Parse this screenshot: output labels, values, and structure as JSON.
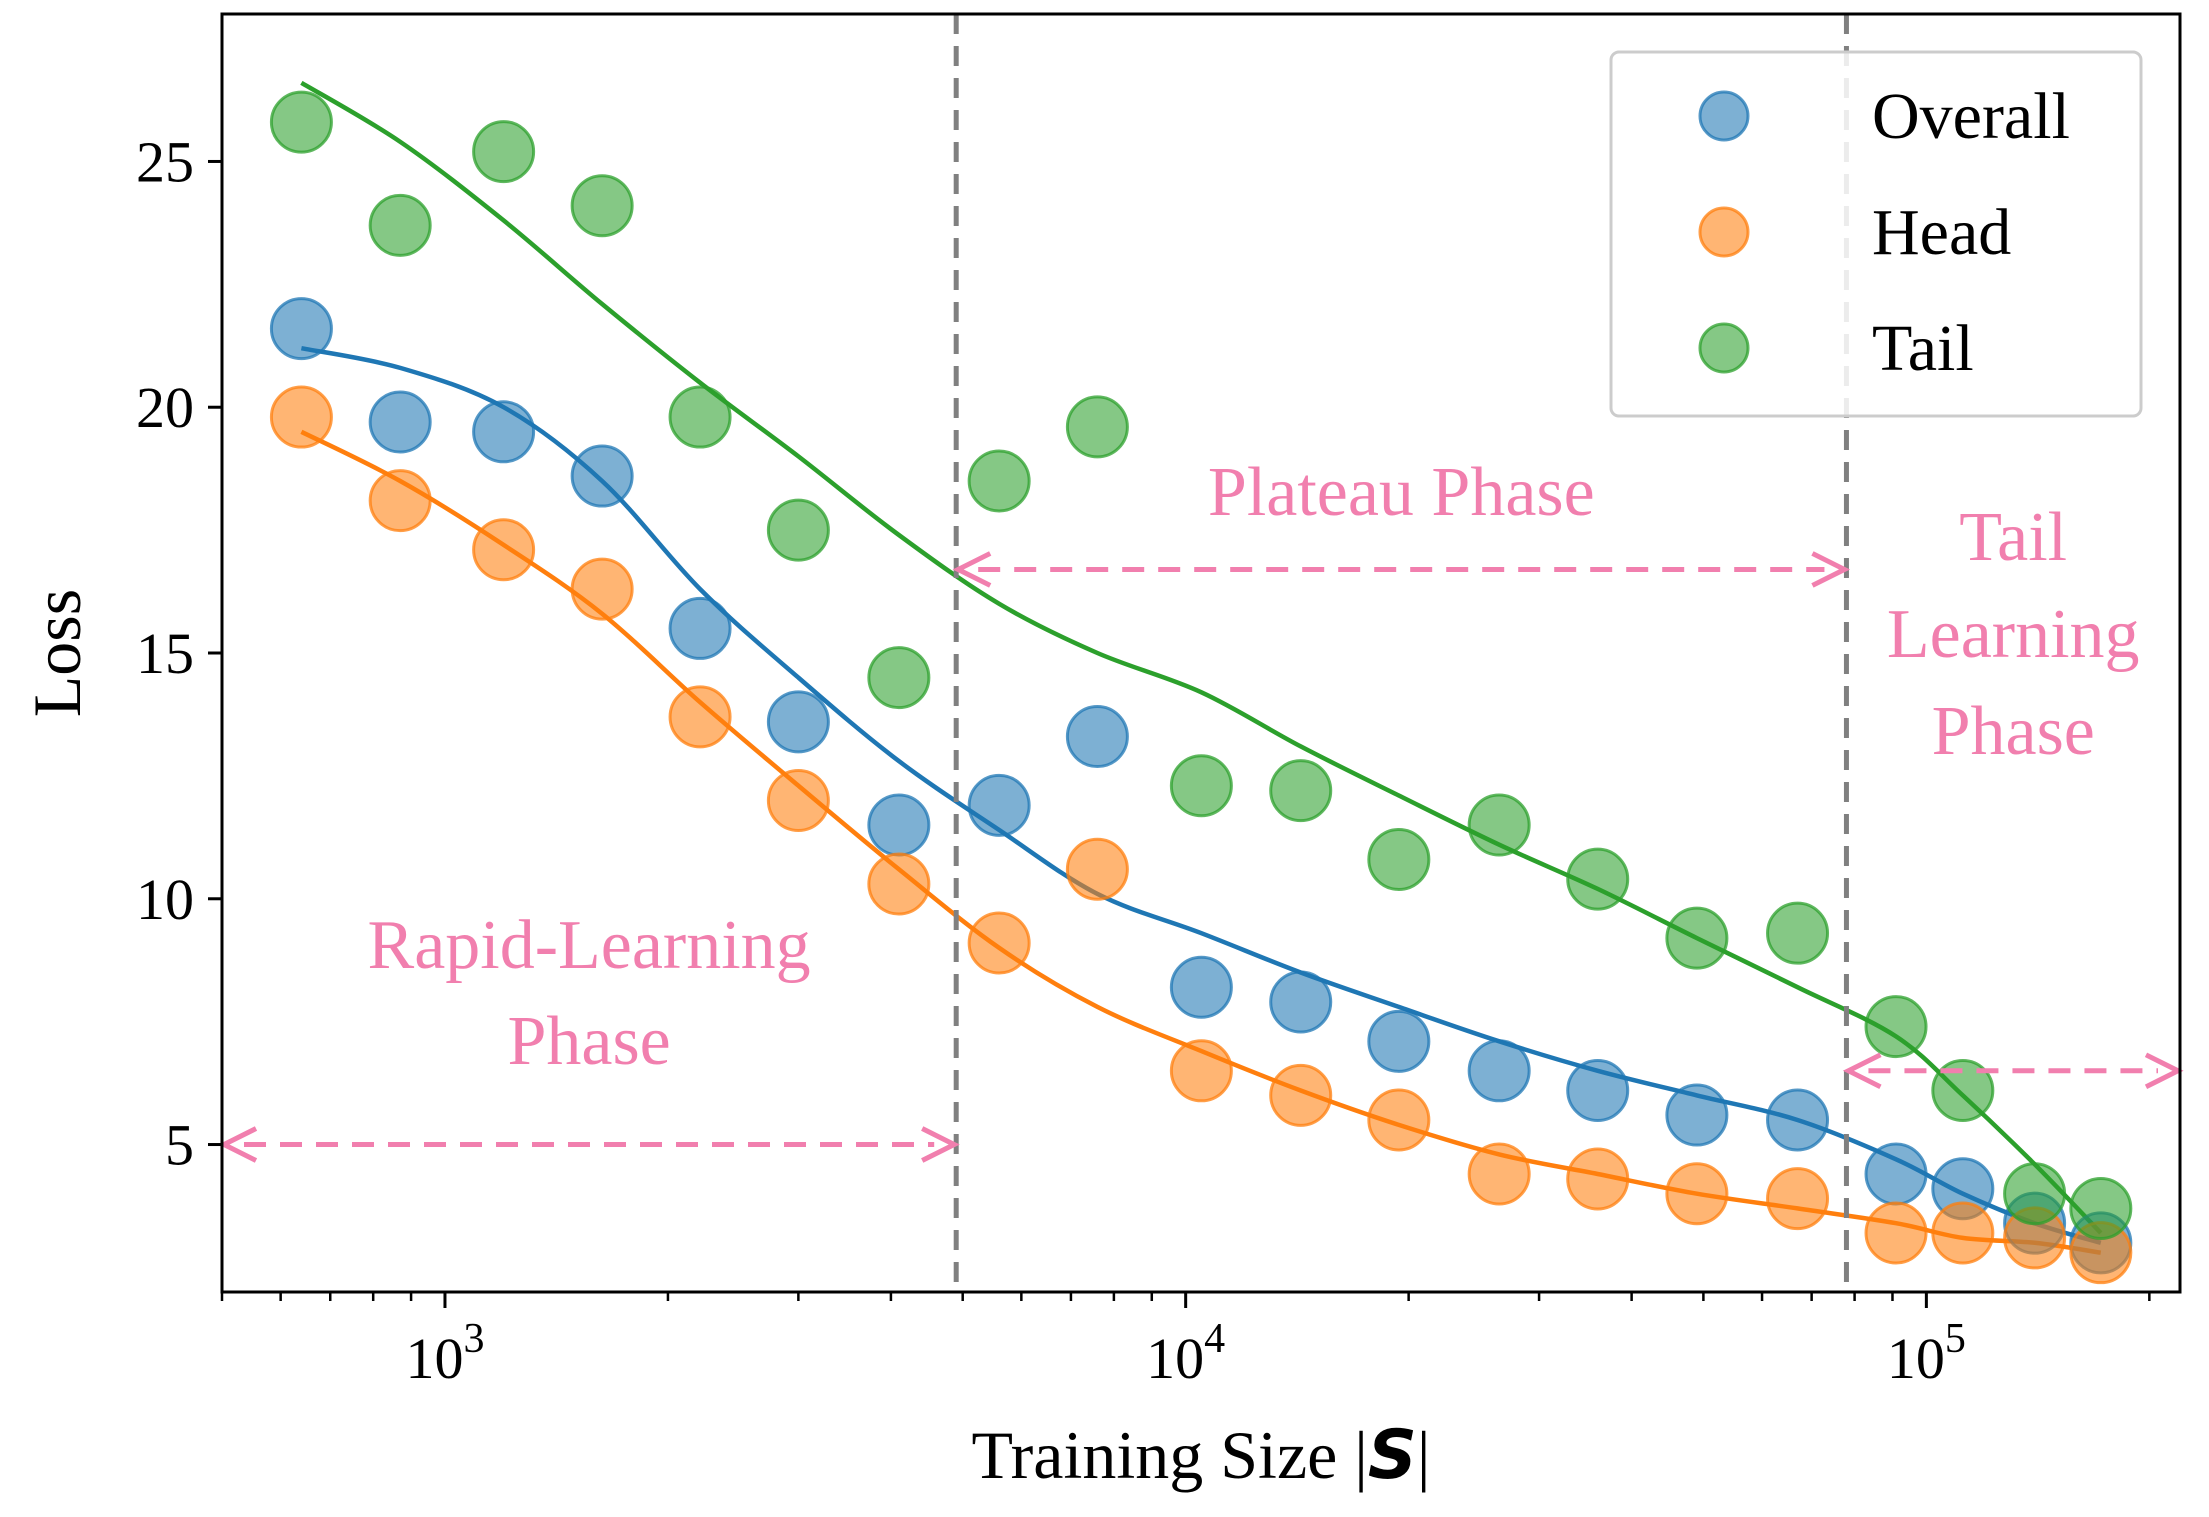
{
  "chart_data": {
    "type": "scatter",
    "title": "",
    "xlabel": "Training Size |",
    "xlabel_symbol": "S",
    "xlabel_suffix": "|",
    "ylabel": "Loss",
    "x_scale": "log",
    "xlim": [
      500,
      220000
    ],
    "ylim": [
      2,
      28
    ],
    "yticks": [
      5,
      10,
      15,
      20,
      25
    ],
    "xticks_major": [
      {
        "value": 1000,
        "base": "10",
        "exp": "3"
      },
      {
        "value": 10000,
        "base": "10",
        "exp": "4"
      },
      {
        "value": 100000,
        "base": "10",
        "exp": "5"
      }
    ],
    "x": [
      640,
      870,
      1200,
      1630,
      2210,
      3000,
      4100,
      5600,
      7600,
      10500,
      14300,
      19400,
      26500,
      36000,
      49000,
      67000,
      91000,
      112000,
      140000,
      172000
    ],
    "series": [
      {
        "name": "Overall",
        "color": "#1f77b4",
        "values": [
          21.6,
          19.7,
          19.5,
          18.6,
          15.5,
          13.6,
          11.5,
          11.9,
          13.3,
          8.2,
          7.9,
          7.1,
          6.5,
          6.1,
          5.6,
          5.5,
          4.4,
          4.1,
          3.4,
          3.0
        ],
        "fit": [
          21.2,
          20.8,
          20.0,
          18.5,
          16.3,
          14.5,
          12.8,
          11.4,
          10.1,
          9.3,
          8.5,
          7.8,
          7.1,
          6.5,
          6.0,
          5.5,
          4.7,
          4.0,
          3.4,
          3.0
        ]
      },
      {
        "name": "Head",
        "color": "#ff7f0e",
        "values": [
          19.8,
          18.1,
          17.1,
          16.3,
          13.7,
          12.0,
          10.3,
          9.1,
          10.6,
          6.5,
          6.0,
          5.5,
          4.4,
          4.3,
          4.0,
          3.9,
          3.2,
          3.2,
          3.1,
          2.8
        ],
        "fit": [
          19.5,
          18.5,
          17.2,
          15.8,
          14.0,
          12.3,
          10.6,
          9.0,
          7.8,
          6.9,
          6.1,
          5.4,
          4.8,
          4.4,
          4.0,
          3.7,
          3.4,
          3.1,
          3.0,
          2.8
        ]
      },
      {
        "name": "Tail",
        "color": "#2ca02c",
        "values": [
          25.8,
          23.7,
          25.2,
          24.1,
          19.8,
          17.5,
          14.5,
          18.5,
          19.6,
          12.3,
          12.2,
          10.8,
          11.5,
          10.4,
          9.2,
          9.3,
          7.4,
          6.1,
          4.0,
          3.7
        ],
        "fit": [
          26.6,
          25.4,
          23.8,
          22.1,
          20.5,
          19.0,
          17.4,
          16.0,
          15.0,
          14.2,
          13.1,
          12.1,
          11.1,
          10.2,
          9.2,
          8.2,
          7.2,
          6.0,
          4.6,
          3.2
        ]
      }
    ],
    "phase_boundaries": [
      4900,
      78000
    ],
    "phases": [
      {
        "lines": [
          "Rapid-Learning",
          "Phase"
        ],
        "range": [
          500,
          4900
        ],
        "y": 5.0
      },
      {
        "lines": [
          "Plateau Phase"
        ],
        "range": [
          4900,
          78000
        ],
        "y": 16.7
      },
      {
        "lines": [
          "Tail",
          "Learning",
          "Phase"
        ],
        "range": [
          78000,
          220000
        ],
        "y": 6.5
      }
    ],
    "phase_color": "#f17fae",
    "legend_position": "upper-right",
    "grid": false
  }
}
